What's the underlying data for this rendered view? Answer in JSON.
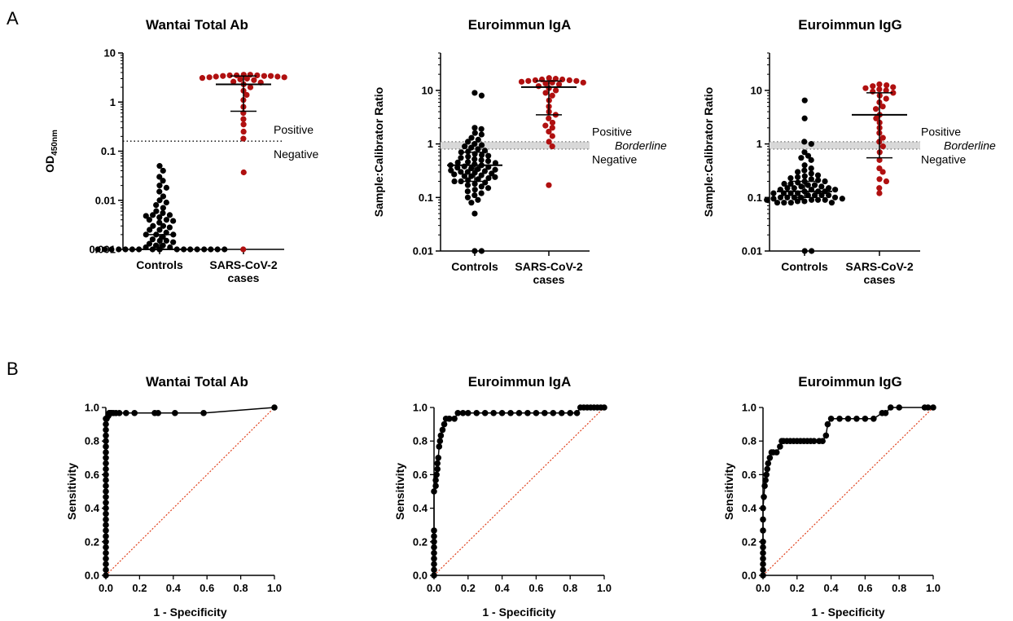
{
  "panel_labels": [
    "A",
    "B"
  ],
  "chart_data": [
    {
      "type": "scatter",
      "title": "Wantai Total Ab",
      "ylabel": "OD",
      "ylabel_sub": "450nm",
      "yscale": "log",
      "ylim": [
        0.001,
        10
      ],
      "yticks": [
        "0.001",
        "0.01",
        "0.1",
        "1",
        "10"
      ],
      "categories": [
        [
          "Controls"
        ],
        [
          "SARS-CoV-2",
          "cases"
        ]
      ],
      "cutoffs": [
        {
          "value": 0.16,
          "style": "dotted"
        }
      ],
      "annotations": [
        "Positive",
        "Negative"
      ],
      "series": [
        {
          "category": "Controls",
          "color": "#000000",
          "values": [
            0.05,
            0.04,
            0.03,
            0.025,
            0.02,
            0.018,
            0.015,
            0.012,
            0.01,
            0.009,
            0.008,
            0.007,
            0.006,
            0.0055,
            0.005,
            0.005,
            0.0048,
            0.0045,
            0.004,
            0.004,
            0.0038,
            0.0035,
            0.003,
            0.003,
            0.0028,
            0.0025,
            0.0025,
            0.0022,
            0.002,
            0.002,
            0.002,
            0.0018,
            0.0016,
            0.0015,
            0.0015,
            0.0014,
            0.0013,
            0.0012,
            0.0012,
            0.0011,
            0.0011,
            0.001,
            0.001,
            0.001,
            0.001,
            0.001,
            0.001,
            0.001,
            0.001,
            0.001,
            0.001,
            0.001,
            0.001,
            0.001,
            0.001,
            0.001,
            0.001,
            0.001,
            0.001,
            0.001
          ],
          "median": 0.001,
          "iqr": [
            0.001,
            0.002
          ]
        },
        {
          "category": "SARS-CoV-2 cases",
          "color": "#b01010",
          "values": [
            3.6,
            3.6,
            3.5,
            3.5,
            3.5,
            3.4,
            3.4,
            3.4,
            3.3,
            3.3,
            3.2,
            3.2,
            3.1,
            3.0,
            2.9,
            2.8,
            2.6,
            2.5,
            2.3,
            2.0,
            1.7,
            1.4,
            1.1,
            0.8,
            0.6,
            0.45,
            0.35,
            0.25,
            0.18,
            0.037,
            0.001
          ],
          "median": 2.3,
          "iqr": [
            0.65,
            3.4
          ]
        }
      ]
    },
    {
      "type": "scatter",
      "title": "Euroimmun IgA",
      "ylabel": "Sample:Calibrator Ratio",
      "yscale": "log",
      "ylim": [
        0.01,
        50
      ],
      "yticks": [
        "0.01",
        "0.1",
        "1",
        "10"
      ],
      "categories": [
        [
          "Controls"
        ],
        [
          "SARS-CoV-2",
          "cases"
        ]
      ],
      "band": [
        0.8,
        1.1
      ],
      "annotations": [
        "Positive",
        "Borderline",
        "Negative"
      ],
      "series": [
        {
          "category": "Controls",
          "color": "#000000",
          "values": [
            9.0,
            8.0,
            2.0,
            1.9,
            1.6,
            1.5,
            1.3,
            1.2,
            1.1,
            1.0,
            0.95,
            0.9,
            0.85,
            0.8,
            0.75,
            0.72,
            0.7,
            0.65,
            0.62,
            0.6,
            0.58,
            0.55,
            0.52,
            0.5,
            0.48,
            0.46,
            0.45,
            0.44,
            0.42,
            0.4,
            0.4,
            0.38,
            0.37,
            0.36,
            0.35,
            0.34,
            0.33,
            0.32,
            0.31,
            0.3,
            0.3,
            0.29,
            0.28,
            0.27,
            0.26,
            0.25,
            0.25,
            0.24,
            0.23,
            0.22,
            0.21,
            0.2,
            0.2,
            0.19,
            0.18,
            0.17,
            0.16,
            0.15,
            0.14,
            0.13,
            0.12,
            0.11,
            0.1,
            0.09,
            0.08,
            0.05,
            0.01,
            0.01
          ],
          "median": 0.4,
          "iqr": [
            0.2,
            0.7
          ]
        },
        {
          "category": "SARS-CoV-2 cases",
          "color": "#b01010",
          "values": [
            17,
            16.5,
            16,
            16,
            15.5,
            15.5,
            15,
            15,
            14.5,
            14,
            14,
            13.5,
            13,
            12,
            11,
            10,
            9,
            8,
            6.5,
            5,
            4,
            3.5,
            3,
            2.5,
            2.2,
            2,
            1.7,
            1.4,
            1.1,
            0.9,
            0.17
          ],
          "median": 11.5,
          "iqr": [
            3.5,
            15
          ]
        }
      ]
    },
    {
      "type": "scatter",
      "title": "Euroimmun IgG",
      "ylabel": "Sample:Calibrator Ratio",
      "yscale": "log",
      "ylim": [
        0.01,
        50
      ],
      "yticks": [
        "0.01",
        "0.1",
        "1",
        "10"
      ],
      "categories": [
        [
          "Controls"
        ],
        [
          "SARS-CoV-2",
          "cases"
        ]
      ],
      "band": [
        0.8,
        1.1
      ],
      "annotations": [
        "Positive",
        "Borderline",
        "Negative"
      ],
      "series": [
        {
          "category": "Controls",
          "color": "#000000",
          "values": [
            6.5,
            3.0,
            1.1,
            1.0,
            0.7,
            0.6,
            0.55,
            0.5,
            0.4,
            0.35,
            0.32,
            0.3,
            0.28,
            0.26,
            0.25,
            0.24,
            0.23,
            0.22,
            0.21,
            0.2,
            0.2,
            0.19,
            0.18,
            0.18,
            0.17,
            0.17,
            0.16,
            0.16,
            0.15,
            0.15,
            0.15,
            0.14,
            0.14,
            0.14,
            0.13,
            0.13,
            0.13,
            0.12,
            0.12,
            0.12,
            0.12,
            0.11,
            0.11,
            0.11,
            0.11,
            0.1,
            0.1,
            0.1,
            0.1,
            0.1,
            0.095,
            0.095,
            0.09,
            0.09,
            0.09,
            0.09,
            0.085,
            0.085,
            0.08,
            0.08,
            0.08,
            0.08,
            0.01,
            0.01
          ],
          "median": 0.13,
          "iqr": [
            0.1,
            0.2
          ]
        },
        {
          "category": "SARS-CoV-2 cases",
          "color": "#b01010",
          "values": [
            13,
            12.5,
            12,
            11.5,
            11,
            10.5,
            10,
            9.5,
            9,
            8,
            7,
            6,
            5,
            4.5,
            3.5,
            3,
            2.5,
            2,
            1.6,
            1.3,
            1.1,
            0.9,
            0.7,
            0.5,
            0.35,
            0.3,
            0.22,
            0.2,
            0.15,
            0.12
          ],
          "median": 3.5,
          "iqr": [
            0.55,
            9
          ]
        }
      ]
    },
    {
      "type": "line",
      "title": "Wantai Total Ab",
      "xlabel": "1 - Specificity",
      "ylabel": "Sensitivity",
      "xlim": [
        0,
        1
      ],
      "ylim": [
        0,
        1
      ],
      "xticks": [
        "0.0",
        "0.2",
        "0.4",
        "0.6",
        "0.8",
        "1.0"
      ],
      "yticks": [
        "0.0",
        "0.2",
        "0.4",
        "0.6",
        "0.8",
        "1.0"
      ],
      "reference_line": true,
      "x": [
        0,
        0,
        0,
        0,
        0,
        0,
        0,
        0,
        0,
        0,
        0,
        0,
        0,
        0,
        0,
        0,
        0,
        0,
        0,
        0,
        0,
        0,
        0,
        0,
        0,
        0,
        0,
        0,
        0,
        0.005,
        0.015,
        0.02,
        0.025,
        0.03,
        0.035,
        0.045,
        0.06,
        0.08,
        0.12,
        0.17,
        0.29,
        0.31,
        0.41,
        0.58,
        1.0
      ],
      "y": [
        0,
        0.033,
        0.067,
        0.1,
        0.133,
        0.167,
        0.2,
        0.233,
        0.267,
        0.3,
        0.333,
        0.367,
        0.4,
        0.433,
        0.467,
        0.5,
        0.533,
        0.567,
        0.6,
        0.633,
        0.667,
        0.7,
        0.733,
        0.767,
        0.8,
        0.833,
        0.867,
        0.9,
        0.933,
        0.933,
        0.95,
        0.967,
        0.967,
        0.967,
        0.967,
        0.967,
        0.967,
        0.967,
        0.967,
        0.967,
        0.967,
        0.967,
        0.967,
        0.967,
        1.0
      ]
    },
    {
      "type": "line",
      "title": "Euroimmun IgA",
      "xlabel": "1 - Specificity",
      "ylabel": "Sensitivity",
      "xlim": [
        0,
        1
      ],
      "ylim": [
        0,
        1
      ],
      "xticks": [
        "0.0",
        "0.2",
        "0.4",
        "0.6",
        "0.8",
        "1.0"
      ],
      "yticks": [
        "0.0",
        "0.2",
        "0.4",
        "0.6",
        "0.8",
        "1.0"
      ],
      "reference_line": true,
      "x": [
        0,
        0,
        0,
        0,
        0,
        0,
        0,
        0,
        0,
        0,
        0.01,
        0.01,
        0.015,
        0.02,
        0.02,
        0.025,
        0.03,
        0.035,
        0.04,
        0.05,
        0.06,
        0.07,
        0.09,
        0.12,
        0.14,
        0.17,
        0.2,
        0.25,
        0.3,
        0.35,
        0.4,
        0.45,
        0.5,
        0.55,
        0.6,
        0.65,
        0.7,
        0.75,
        0.8,
        0.84,
        0.86,
        0.88,
        0.9,
        0.92,
        0.94,
        0.96,
        0.98,
        1.0
      ],
      "y": [
        0,
        0.033,
        0.067,
        0.1,
        0.133,
        0.167,
        0.2,
        0.233,
        0.267,
        0.5,
        0.533,
        0.567,
        0.6,
        0.633,
        0.667,
        0.7,
        0.767,
        0.8,
        0.833,
        0.867,
        0.9,
        0.933,
        0.933,
        0.933,
        0.967,
        0.967,
        0.967,
        0.967,
        0.967,
        0.967,
        0.967,
        0.967,
        0.967,
        0.967,
        0.967,
        0.967,
        0.967,
        0.967,
        0.967,
        0.967,
        1.0,
        1.0,
        1.0,
        1.0,
        1.0,
        1.0,
        1.0,
        1.0
      ]
    },
    {
      "type": "line",
      "title": "Euroimmun IgG",
      "xlabel": "1 - Specificity",
      "ylabel": "Sensitivity",
      "xlim": [
        0,
        1
      ],
      "ylim": [
        0,
        1
      ],
      "xticks": [
        "0.0",
        "0.2",
        "0.4",
        "0.6",
        "0.8",
        "1.0"
      ],
      "yticks": [
        "0.0",
        "0.2",
        "0.4",
        "0.6",
        "0.8",
        "1.0"
      ],
      "reference_line": true,
      "x": [
        0,
        0,
        0,
        0,
        0,
        0,
        0,
        0,
        0,
        0,
        0.005,
        0.01,
        0.015,
        0.02,
        0.025,
        0.03,
        0.04,
        0.05,
        0.06,
        0.08,
        0.1,
        0.11,
        0.12,
        0.14,
        0.16,
        0.18,
        0.2,
        0.22,
        0.24,
        0.26,
        0.28,
        0.3,
        0.33,
        0.35,
        0.37,
        0.38,
        0.4,
        0.45,
        0.5,
        0.55,
        0.6,
        0.65,
        0.7,
        0.72,
        0.75,
        0.8,
        0.95,
        0.97,
        1.0
      ],
      "y": [
        0,
        0.033,
        0.067,
        0.1,
        0.133,
        0.167,
        0.2,
        0.267,
        0.333,
        0.4,
        0.467,
        0.533,
        0.567,
        0.6,
        0.633,
        0.667,
        0.7,
        0.733,
        0.733,
        0.733,
        0.767,
        0.8,
        0.8,
        0.8,
        0.8,
        0.8,
        0.8,
        0.8,
        0.8,
        0.8,
        0.8,
        0.8,
        0.8,
        0.8,
        0.833,
        0.9,
        0.933,
        0.933,
        0.933,
        0.933,
        0.933,
        0.933,
        0.967,
        0.967,
        1.0,
        1.0,
        1.0,
        1.0,
        1.0
      ]
    }
  ]
}
